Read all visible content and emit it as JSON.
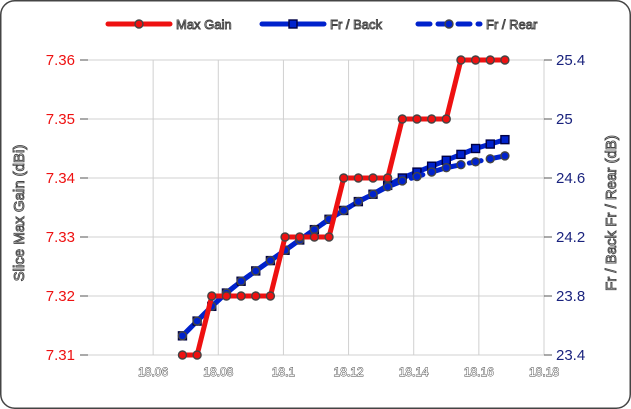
{
  "chart_data": {
    "type": "line",
    "title": "",
    "xlabel": "",
    "ylabel_left": "Slice Max Gain (dBi)",
    "ylabel_right": "Fr / Back   Fr / Rear (dB)",
    "xlim": [
      18.04,
      18.18
    ],
    "ylim_left": [
      7.31,
      7.36
    ],
    "ylim_right": [
      23.4,
      25.4
    ],
    "x_ticks": [
      "18.06",
      "18.08",
      "18.1",
      "18.12",
      "18.14",
      "18.16",
      "18.18"
    ],
    "y_ticks_left": [
      "7.31",
      "7.32",
      "7.33",
      "7.34",
      "7.35",
      "7.36"
    ],
    "y_ticks_right": [
      "23.4",
      "23.8",
      "24.2",
      "24.6",
      "25",
      "25.4"
    ],
    "grid": true,
    "legend_position": "top",
    "series": [
      {
        "name": "Max Gain",
        "axis": "left",
        "color": "#ee1111",
        "dashed": false,
        "marker": "circle",
        "x": [
          18.069,
          18.0735,
          18.078,
          18.0825,
          18.087,
          18.0915,
          18.096,
          18.1005,
          18.105,
          18.1095,
          18.114,
          18.1185,
          18.123,
          18.1275,
          18.132,
          18.1365,
          18.141,
          18.1455,
          18.15,
          18.1545,
          18.159,
          18.1635,
          18.168
        ],
        "y": [
          7.31,
          7.31,
          7.32,
          7.32,
          7.32,
          7.32,
          7.32,
          7.33,
          7.33,
          7.33,
          7.33,
          7.34,
          7.34,
          7.34,
          7.34,
          7.35,
          7.35,
          7.35,
          7.35,
          7.36,
          7.36,
          7.36,
          7.36
        ]
      },
      {
        "name": "Fr / Back",
        "axis": "right",
        "color": "#0022cc",
        "dashed": false,
        "marker": "square",
        "x": [
          18.069,
          18.0735,
          18.078,
          18.0825,
          18.087,
          18.0915,
          18.096,
          18.1005,
          18.105,
          18.1095,
          18.114,
          18.1185,
          18.123,
          18.1275,
          18.132,
          18.1365,
          18.141,
          18.1455,
          18.15,
          18.1545,
          18.159,
          18.1635,
          18.168
        ],
        "y": [
          23.53,
          23.63,
          23.73,
          23.82,
          23.9,
          23.97,
          24.04,
          24.11,
          24.18,
          24.25,
          24.32,
          24.38,
          24.44,
          24.49,
          24.55,
          24.6,
          24.64,
          24.68,
          24.72,
          24.76,
          24.8,
          24.83,
          24.86
        ]
      },
      {
        "name": "Fr / Rear",
        "axis": "right",
        "color": "#0022cc",
        "dashed": true,
        "marker": "circle",
        "x": [
          18.069,
          18.0735,
          18.078,
          18.0825,
          18.087,
          18.0915,
          18.096,
          18.1005,
          18.105,
          18.1095,
          18.114,
          18.1185,
          18.123,
          18.1275,
          18.132,
          18.1365,
          18.141,
          18.1455,
          18.15,
          18.1545,
          18.159,
          18.1635,
          18.168
        ],
        "y": [
          23.53,
          23.63,
          23.73,
          23.82,
          23.9,
          23.97,
          24.04,
          24.11,
          24.18,
          24.25,
          24.32,
          24.38,
          24.44,
          24.49,
          24.54,
          24.58,
          24.61,
          24.64,
          24.67,
          24.69,
          24.71,
          24.73,
          24.75
        ]
      }
    ]
  }
}
